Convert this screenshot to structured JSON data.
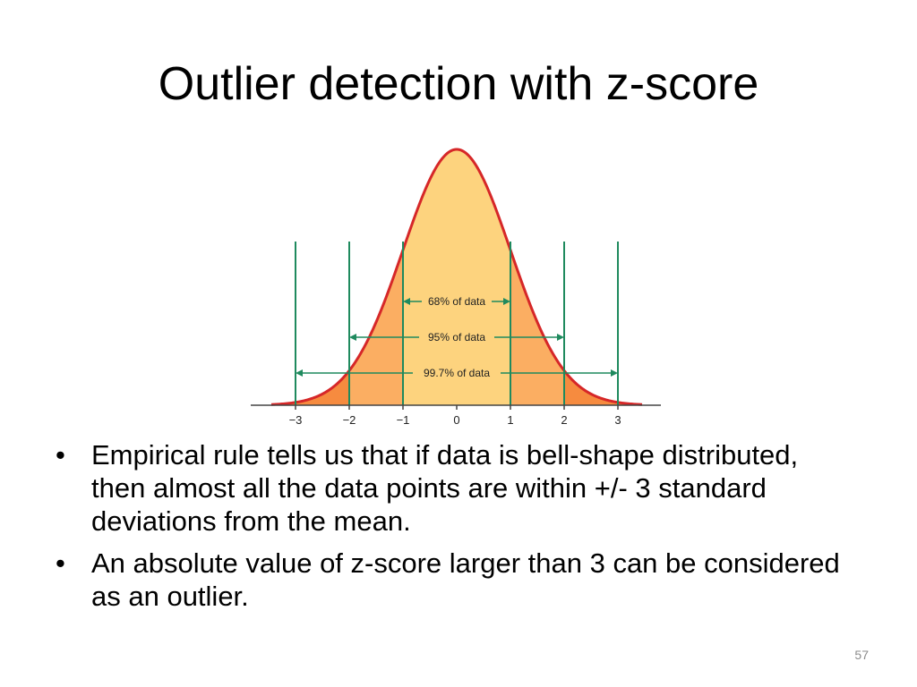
{
  "title": "Outlier detection with z-score",
  "figure": {
    "tick_labels": [
      "−3",
      "−2",
      "−1",
      "0",
      "1",
      "2",
      "3"
    ],
    "ranges": [
      {
        "label": "68% of data",
        "from": -1,
        "to": 1
      },
      {
        "label": "95% of data",
        "from": -2,
        "to": 2
      },
      {
        "label": "99.7% of data",
        "from": -3,
        "to": 3
      }
    ],
    "colors": {
      "curve": "#d62728",
      "center_fill": "#fdd37e",
      "middle_fill": "#fbae62",
      "tail_fill": "#f68b3f",
      "line": "#1f8a5e"
    }
  },
  "bullets": [
    "Empirical rule tells us that if data is bell-shape distributed, then almost all the data points are within +/- 3 standard deviations from the mean.",
    "An absolute value of z-score larger than 3 can be considered as an outlier."
  ],
  "bullet_symbol": "•",
  "page_number": "57"
}
